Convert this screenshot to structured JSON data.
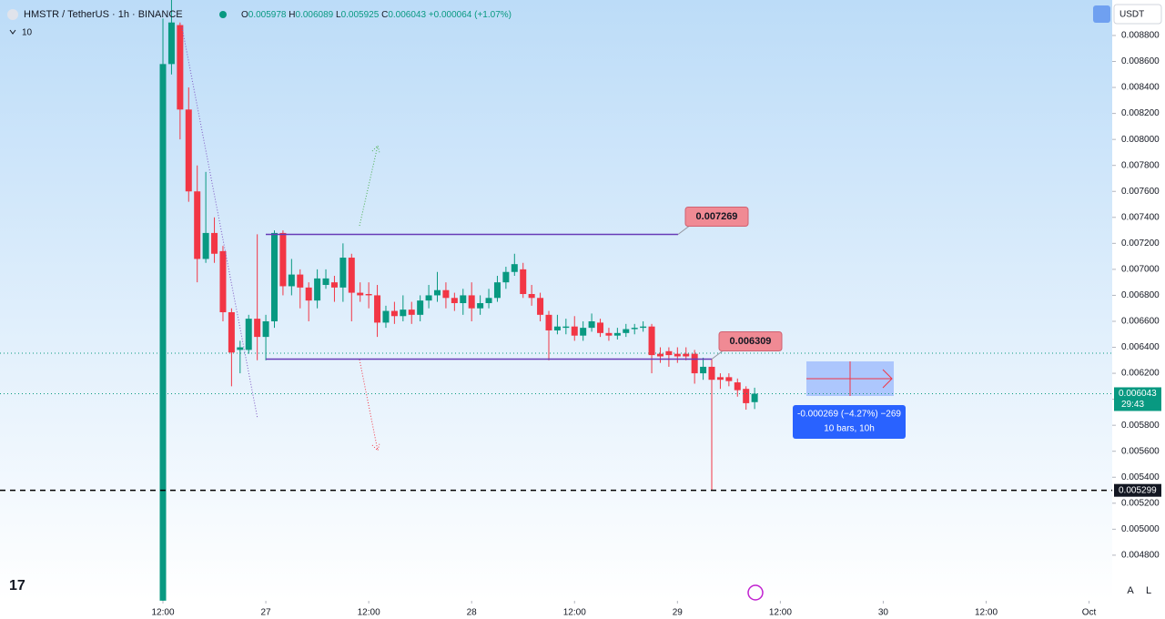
{
  "chart_data": {
    "type": "candlestick",
    "title": "HMSTR / TetherUS · 1h · BINANCE",
    "ohlc_labels": [
      "O",
      "H",
      "L",
      "C"
    ],
    "change_label": "+0.000064 (+1.07%)",
    "indicator_value": "10",
    "currency": "USDT",
    "axis_buttons": [
      "A",
      "L"
    ],
    "up_color": "#089981",
    "down_color": "#f23645",
    "x": [
      0,
      1,
      2,
      3,
      4,
      5,
      6,
      7,
      8,
      9,
      10,
      11,
      12,
      13,
      14,
      15,
      16,
      17,
      18,
      19,
      20,
      21,
      22,
      23,
      24,
      25,
      26,
      27,
      28,
      29,
      30,
      31,
      32,
      33,
      34,
      35,
      36,
      37,
      38,
      39,
      40,
      41,
      42,
      43,
      44,
      45,
      46,
      47,
      48,
      49,
      50,
      51,
      52,
      53,
      54,
      55,
      56,
      57,
      58,
      59,
      60,
      61,
      62,
      63,
      64,
      65,
      66,
      67,
      68,
      69
    ],
    "open": [
      0.00445,
      0.00858,
      0.00888,
      0.00823,
      0.0076,
      0.00708,
      0.00728,
      0.00714,
      0.00667,
      0.00638,
      0.00638,
      0.00662,
      0.00648,
      0.0066,
      0.00728,
      0.00687,
      0.00696,
      0.00686,
      0.00676,
      0.00688,
      0.0069,
      0.00686,
      0.00709,
      0.00682,
      0.00681,
      0.0068,
      0.00659,
      0.00668,
      0.00664,
      0.00669,
      0.00665,
      0.00676,
      0.0068,
      0.00684,
      0.00678,
      0.00674,
      0.0068,
      0.0067,
      0.00674,
      0.00678,
      0.0069,
      0.00698,
      0.007,
      0.00681,
      0.00678,
      0.00665,
      0.00653,
      0.00655,
      0.00656,
      0.00649,
      0.00655,
      0.00659,
      0.00651,
      0.00649,
      0.00651,
      0.00654,
      0.00655,
      0.00656,
      0.00635,
      0.00637,
      0.00635,
      0.00635,
      0.00635,
      0.0062,
      0.00625,
      0.00617,
      0.00617,
      0.00613,
      0.00608,
      0.005978
    ],
    "high": [
      0.00893,
      0.0091,
      0.0089,
      0.0084,
      0.0078,
      0.00775,
      0.0074,
      0.00718,
      0.0067,
      0.00645,
      0.00665,
      0.00727,
      0.00665,
      0.0073,
      0.0073,
      0.00708,
      0.007,
      0.0069,
      0.007,
      0.007,
      0.00695,
      0.0072,
      0.00712,
      0.0069,
      0.0069,
      0.00688,
      0.00672,
      0.00675,
      0.0068,
      0.00675,
      0.0068,
      0.00688,
      0.00698,
      0.0069,
      0.00682,
      0.00685,
      0.0069,
      0.0068,
      0.00685,
      0.00695,
      0.00702,
      0.00712,
      0.00705,
      0.00688,
      0.00682,
      0.00668,
      0.00665,
      0.00662,
      0.00664,
      0.0066,
      0.00666,
      0.00662,
      0.00655,
      0.00655,
      0.00658,
      0.00658,
      0.0066,
      0.00658,
      0.0064,
      0.0064,
      0.0064,
      0.0064,
      0.00638,
      0.00632,
      0.00631,
      0.0062,
      0.0062,
      0.00616,
      0.0061,
      0.006089
    ],
    "low": [
      0.0044,
      0.0085,
      0.008,
      0.00752,
      0.0069,
      0.00705,
      0.00705,
      0.0066,
      0.0061,
      0.0062,
      0.00635,
      0.0063,
      0.0063,
      0.00655,
      0.0068,
      0.0068,
      0.0067,
      0.0066,
      0.0067,
      0.00685,
      0.00675,
      0.00675,
      0.0066,
      0.00675,
      0.0067,
      0.00648,
      0.00655,
      0.00658,
      0.0066,
      0.00658,
      0.0066,
      0.0067,
      0.00675,
      0.0067,
      0.00668,
      0.00665,
      0.0066,
      0.00665,
      0.0067,
      0.00675,
      0.00685,
      0.00695,
      0.00678,
      0.00672,
      0.0066,
      0.0063,
      0.0065,
      0.0065,
      0.00645,
      0.00645,
      0.00652,
      0.00648,
      0.00645,
      0.00646,
      0.00648,
      0.0065,
      0.00652,
      0.0062,
      0.00628,
      0.00625,
      0.00628,
      0.0063,
      0.00612,
      0.00615,
      0.0053,
      0.00608,
      0.0061,
      0.00602,
      0.00592,
      0.005925
    ],
    "close": [
      0.00858,
      0.0089,
      0.00823,
      0.0076,
      0.00708,
      0.00728,
      0.00712,
      0.00667,
      0.00636,
      0.0064,
      0.00662,
      0.00648,
      0.0066,
      0.00728,
      0.00687,
      0.00696,
      0.00686,
      0.00676,
      0.00693,
      0.00693,
      0.00686,
      0.00709,
      0.00682,
      0.0068,
      0.0068,
      0.00659,
      0.00668,
      0.00664,
      0.00669,
      0.00665,
      0.00676,
      0.0068,
      0.00684,
      0.00678,
      0.00674,
      0.0068,
      0.0067,
      0.00674,
      0.00678,
      0.0069,
      0.00698,
      0.00704,
      0.00681,
      0.00678,
      0.00665,
      0.00653,
      0.00656,
      0.00656,
      0.00649,
      0.00655,
      0.0066,
      0.00651,
      0.00649,
      0.00651,
      0.00654,
      0.00655,
      0.00656,
      0.00634,
      0.00633,
      0.00634,
      0.00633,
      0.00633,
      0.0062,
      0.00625,
      0.00615,
      0.00615,
      0.00614,
      0.00607,
      0.00597,
      0.006043
    ],
    "xlim": [
      -19,
      110.7
    ],
    "xticks": [
      {
        "value": 0,
        "label": "12:00"
      },
      {
        "value": 12,
        "label": "27"
      },
      {
        "value": 24,
        "label": "12:00"
      },
      {
        "value": 36,
        "label": "28"
      },
      {
        "value": 48,
        "label": "12:00"
      },
      {
        "value": 60,
        "label": "29"
      },
      {
        "value": 72,
        "label": "12:00"
      },
      {
        "value": 84,
        "label": "30"
      },
      {
        "value": 96,
        "label": "12:00"
      },
      {
        "value": 108,
        "label": "Oct"
      }
    ],
    "ylim": [
      0.004449,
      0.009073
    ],
    "yticks": [
      {
        "value": 0.0048,
        "label": "0.004800"
      },
      {
        "value": 0.005,
        "label": "0.005000"
      },
      {
        "value": 0.0052,
        "label": "0.005200"
      },
      {
        "value": 0.0054,
        "label": "0.005400"
      },
      {
        "value": 0.0056,
        "label": "0.005600"
      },
      {
        "value": 0.0058,
        "label": "0.005800"
      },
      {
        "value": 0.006,
        "label": "0.006000"
      },
      {
        "value": 0.0062,
        "label": "0.006200"
      },
      {
        "value": 0.0064,
        "label": "0.006400"
      },
      {
        "value": 0.0066,
        "label": "0.006600"
      },
      {
        "value": 0.0068,
        "label": "0.006800"
      },
      {
        "value": 0.007,
        "label": "0.007000"
      },
      {
        "value": 0.0072,
        "label": "0.007200"
      },
      {
        "value": 0.0074,
        "label": "0.007400"
      },
      {
        "value": 0.0076,
        "label": "0.007600"
      },
      {
        "value": 0.0078,
        "label": "0.007800"
      },
      {
        "value": 0.008,
        "label": "0.008000"
      },
      {
        "value": 0.0082,
        "label": "0.008200"
      },
      {
        "value": 0.0084,
        "label": "0.008400"
      },
      {
        "value": 0.0086,
        "label": "0.008600"
      },
      {
        "value": 0.0088,
        "label": "0.008800"
      }
    ],
    "levels": [
      0.007269,
      0.006309
    ],
    "dashed_level": 0.005299,
    "countdown": "29:43",
    "measure": {
      "line1": "-0.000269 (−4.27%) −269",
      "line2": "10 bars, 10h"
    }
  }
}
